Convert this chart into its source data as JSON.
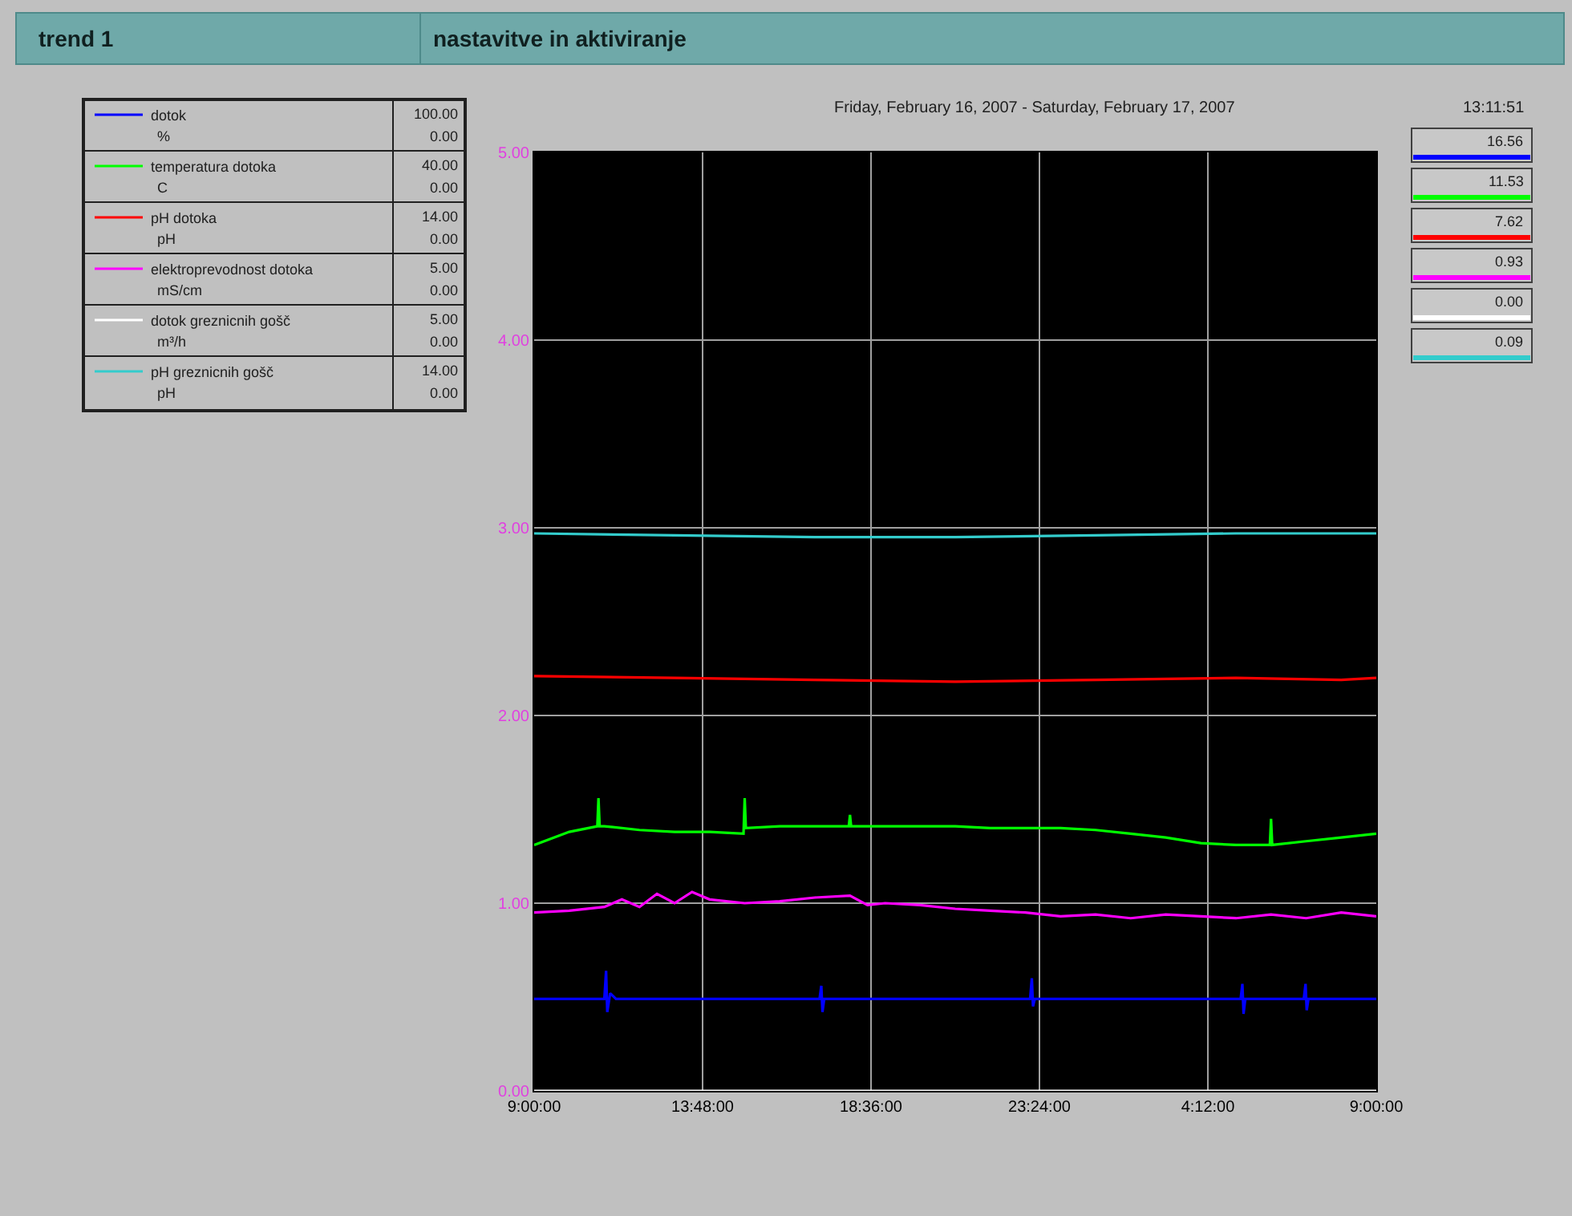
{
  "chart_data": {
    "type": "line",
    "title": "trend 1",
    "subtitle": "nastavitve in aktiviranje",
    "annotations": [
      "Friday, February 16, 2007 - Saturday, February 17, 2007",
      "13:11:51",
      "%",
      "100.00",
      "0.00",
      "16.56",
      "C",
      "40.00",
      "0.00",
      "11.53",
      "pH",
      "14.00",
      "0.00",
      "7.62",
      "mS/cm",
      "5.00",
      "0.00",
      "0.93",
      "m³/h",
      "5.00",
      "0.00",
      "0.00",
      "pH",
      "14.00",
      "0.00",
      "0.09"
    ],
    "series": [
      {
        "name": "dotok",
        "color": "#0000ff",
        "x": [
          "2007-02-16T09:00",
          "2007-02-16T10:00",
          "2007-02-16T11:00",
          "2007-02-16T11:03",
          "2007-02-16T11:05",
          "2007-02-16T11:10",
          "2007-02-16T11:20",
          "2007-02-16T13:00",
          "2007-02-16T15:00",
          "2007-02-16T17:08",
          "2007-02-16T17:11",
          "2007-02-16T17:13",
          "2007-02-16T17:16",
          "2007-02-16T20:00",
          "2007-02-16T23:08",
          "2007-02-16T23:11",
          "2007-02-16T23:13",
          "2007-02-16T23:16",
          "2007-02-17T02:00",
          "2007-02-17T05:08",
          "2007-02-17T05:11",
          "2007-02-17T05:13",
          "2007-02-17T05:16",
          "2007-02-17T06:56",
          "2007-02-17T06:59",
          "2007-02-17T07:01",
          "2007-02-17T07:04",
          "2007-02-17T09:00"
        ],
        "values": [
          0.49,
          0.49,
          0.49,
          0.64,
          0.42,
          0.52,
          0.49,
          0.49,
          0.49,
          0.49,
          0.56,
          0.42,
          0.49,
          0.49,
          0.49,
          0.6,
          0.45,
          0.49,
          0.49,
          0.49,
          0.57,
          0.41,
          0.49,
          0.49,
          0.57,
          0.43,
          0.49,
          0.49
        ]
      },
      {
        "name": "temperatura dotoka",
        "color": "#00ff00",
        "x": [
          "2007-02-16T09:00",
          "2007-02-16T10:00",
          "2007-02-16T10:48",
          "2007-02-16T10:50",
          "2007-02-16T10:52",
          "2007-02-16T11:00",
          "2007-02-16T12:00",
          "2007-02-16T13:00",
          "2007-02-16T14:00",
          "2007-02-16T14:58",
          "2007-02-16T15:00",
          "2007-02-16T15:02",
          "2007-02-16T16:00",
          "2007-02-16T17:00",
          "2007-02-16T17:58",
          "2007-02-16T18:00",
          "2007-02-16T18:02",
          "2007-02-16T19:00",
          "2007-02-16T20:00",
          "2007-02-16T21:00",
          "2007-02-16T22:00",
          "2007-02-16T23:00",
          "2007-02-17T00:00",
          "2007-02-17T01:00",
          "2007-02-17T02:00",
          "2007-02-17T03:00",
          "2007-02-17T04:00",
          "2007-02-17T05:00",
          "2007-02-17T05:58",
          "2007-02-17T06:00",
          "2007-02-17T06:02",
          "2007-02-17T07:00",
          "2007-02-17T08:00",
          "2007-02-17T09:00"
        ],
        "values": [
          1.31,
          1.38,
          1.41,
          1.56,
          1.41,
          1.41,
          1.39,
          1.38,
          1.38,
          1.37,
          1.56,
          1.4,
          1.41,
          1.41,
          1.41,
          1.47,
          1.41,
          1.41,
          1.41,
          1.41,
          1.4,
          1.4,
          1.4,
          1.39,
          1.37,
          1.35,
          1.32,
          1.31,
          1.31,
          1.45,
          1.31,
          1.33,
          1.35,
          1.37
        ]
      },
      {
        "name": "pH dotoka",
        "color": "#ff0000",
        "x": [
          "2007-02-16T09:00",
          "2007-02-16T13:00",
          "2007-02-16T17:00",
          "2007-02-16T21:00",
          "2007-02-17T01:00",
          "2007-02-17T05:00",
          "2007-02-17T08:00",
          "2007-02-17T09:00"
        ],
        "values": [
          2.21,
          2.2,
          2.19,
          2.18,
          2.19,
          2.2,
          2.19,
          2.2
        ]
      },
      {
        "name": "elektroprevodnost dotoka",
        "color": "#ff00ff",
        "x": [
          "2007-02-16T09:00",
          "2007-02-16T10:00",
          "2007-02-16T11:00",
          "2007-02-16T11:30",
          "2007-02-16T12:00",
          "2007-02-16T12:30",
          "2007-02-16T13:00",
          "2007-02-16T13:30",
          "2007-02-16T14:00",
          "2007-02-16T15:00",
          "2007-02-16T16:00",
          "2007-02-16T17:00",
          "2007-02-16T18:00",
          "2007-02-16T18:30",
          "2007-02-16T19:00",
          "2007-02-16T20:00",
          "2007-02-16T21:00",
          "2007-02-16T22:00",
          "2007-02-16T23:00",
          "2007-02-17T00:00",
          "2007-02-17T01:00",
          "2007-02-17T02:00",
          "2007-02-17T03:00",
          "2007-02-17T04:00",
          "2007-02-17T05:00",
          "2007-02-17T06:00",
          "2007-02-17T07:00",
          "2007-02-17T08:00",
          "2007-02-17T09:00"
        ],
        "values": [
          0.95,
          0.96,
          0.98,
          1.02,
          0.98,
          1.05,
          1.0,
          1.06,
          1.02,
          1.0,
          1.01,
          1.03,
          1.04,
          0.99,
          1.0,
          0.99,
          0.97,
          0.96,
          0.95,
          0.93,
          0.94,
          0.92,
          0.94,
          0.93,
          0.92,
          0.94,
          0.92,
          0.95,
          0.93
        ]
      },
      {
        "name": "dotok greznicnih gošč",
        "color": "#ffffff",
        "x": [
          "2007-02-16T09:00",
          "2007-02-17T09:00"
        ],
        "values": [
          0.0,
          0.0
        ]
      },
      {
        "name": "pH greznicnih gošč",
        "color": "#33cccc",
        "x": [
          "2007-02-16T09:00",
          "2007-02-16T13:00",
          "2007-02-16T17:00",
          "2007-02-16T21:00",
          "2007-02-17T01:00",
          "2007-02-17T05:00",
          "2007-02-17T09:00"
        ],
        "values": [
          2.97,
          2.96,
          2.95,
          2.95,
          2.96,
          2.97,
          2.97
        ]
      }
    ],
    "xlim": [
      "2007-02-16T09:00",
      "2007-02-17T09:00"
    ],
    "xticks": [
      {
        "value": "2007-02-16T09:00",
        "label": "9:00:00"
      },
      {
        "value": "2007-02-16T13:48",
        "label": "13:48:00"
      },
      {
        "value": "2007-02-16T18:36",
        "label": "18:36:00"
      },
      {
        "value": "2007-02-16T23:24",
        "label": "23:24:00"
      },
      {
        "value": "2007-02-17T04:12",
        "label": "4:12:00"
      },
      {
        "value": "2007-02-17T09:00",
        "label": "9:00:00"
      }
    ],
    "ylim": [
      0,
      5
    ],
    "yticks": [
      {
        "value": 0,
        "label": "0.00"
      },
      {
        "value": 1,
        "label": "1.00"
      },
      {
        "value": 2,
        "label": "2.00"
      },
      {
        "value": 3,
        "label": "3.00"
      },
      {
        "value": 4,
        "label": "4.00"
      },
      {
        "value": 5,
        "label": "5.00"
      }
    ],
    "grid": true,
    "legend": "top left",
    "marker": "none",
    "line_style": "solid"
  }
}
